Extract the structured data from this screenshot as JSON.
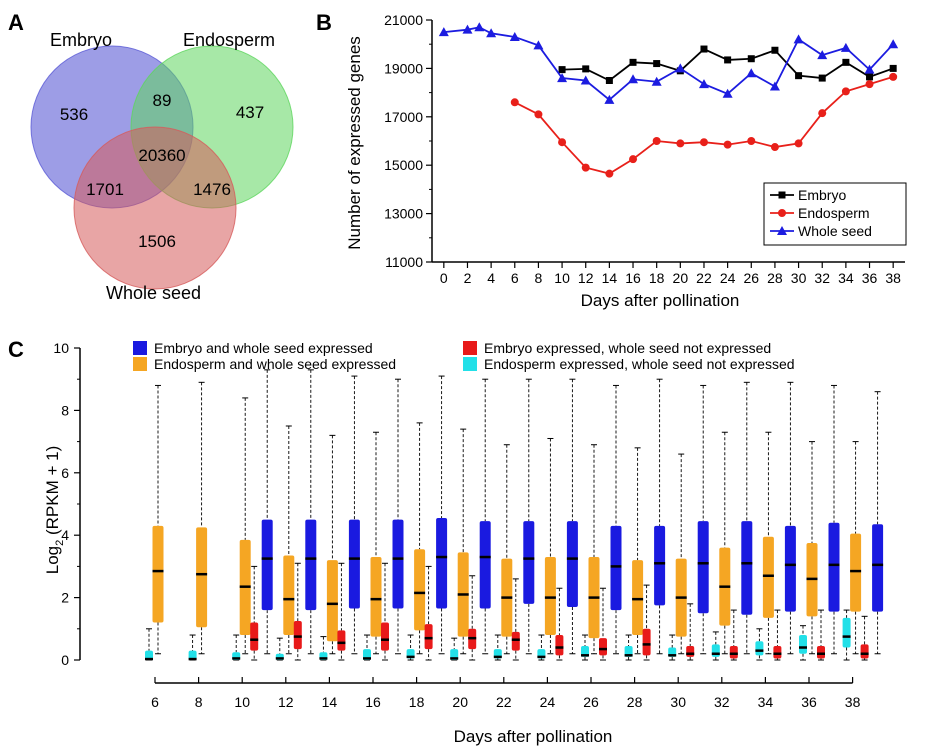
{
  "panel_labels": {
    "a": "A",
    "b": "B",
    "c": "C"
  },
  "chart_data": [
    {
      "type": "venn",
      "panel": "A",
      "sets": [
        {
          "name": "Embryo",
          "label": "Embryo",
          "color": "#5b5bd6"
        },
        {
          "name": "Endosperm",
          "label": "Endosperm",
          "color": "#5ed65e"
        },
        {
          "name": "Whole seed",
          "label": "Whole seed",
          "color": "#d65b5b"
        }
      ],
      "regions": {
        "embryo_only": "536",
        "endosperm_only": "437",
        "whole_seed_only": "1506",
        "embryo_endosperm": "89",
        "embryo_whole_seed": "1701",
        "endosperm_whole_seed": "1476",
        "all_three": "20360"
      }
    },
    {
      "type": "line",
      "panel": "B",
      "xlabel": "Days after pollination",
      "ylabel": "Number of expressed genes",
      "xlim": [
        -1,
        39
      ],
      "ylim": [
        11000,
        21000
      ],
      "xticks": [
        "0",
        "2",
        "4",
        "6",
        "8",
        "10",
        "12",
        "14",
        "16",
        "18",
        "20",
        "22",
        "24",
        "26",
        "28",
        "30",
        "32",
        "34",
        "36",
        "38"
      ],
      "yticks": [
        "11000",
        "13000",
        "15000",
        "17000",
        "19000",
        "21000"
      ],
      "legend_position": "bottom-right",
      "series": [
        {
          "name": "Embryo",
          "color": "#000000",
          "marker": "square",
          "x": [
            10,
            12,
            14,
            16,
            18,
            20,
            22,
            24,
            26,
            28,
            30,
            32,
            34,
            36,
            38
          ],
          "y": [
            18950,
            18980,
            18500,
            19250,
            19200,
            18900,
            19800,
            19350,
            19400,
            19750,
            18700,
            18600,
            19250,
            18650,
            19000
          ]
        },
        {
          "name": "Endosperm",
          "color": "#e8201a",
          "marker": "circle",
          "x": [
            6,
            8,
            10,
            12,
            14,
            16,
            18,
            20,
            22,
            24,
            26,
            28,
            30,
            32,
            34,
            36,
            38
          ],
          "y": [
            17600,
            17100,
            15950,
            14900,
            14650,
            15250,
            16000,
            15900,
            15950,
            15850,
            16000,
            15750,
            15900,
            17150,
            18050,
            18350,
            18650
          ]
        },
        {
          "name": "Whole seed",
          "color": "#1c1ce0",
          "marker": "triangle",
          "x": [
            0,
            2,
            3,
            4,
            6,
            8,
            10,
            12,
            14,
            16,
            18,
            20,
            22,
            24,
            26,
            28,
            30,
            32,
            34,
            36,
            38
          ],
          "y": [
            20500,
            20600,
            20700,
            20450,
            20300,
            19950,
            18600,
            18500,
            17700,
            18550,
            18450,
            19000,
            18350,
            17950,
            18800,
            18250,
            20200,
            19550,
            19850,
            18950,
            20000
          ]
        }
      ]
    },
    {
      "type": "boxplot",
      "panel": "C",
      "xlabel": "Days after pollination",
      "ylabel_main": "Log",
      "ylabel_sub": "2",
      "ylabel_rest": " (RPKM + 1)",
      "ylim": [
        0,
        10
      ],
      "yticks": [
        "0",
        "2",
        "4",
        "6",
        "8",
        "10"
      ],
      "categories": [
        "6",
        "8",
        "10",
        "12",
        "14",
        "16",
        "18",
        "20",
        "22",
        "24",
        "26",
        "28",
        "30",
        "32",
        "34",
        "36",
        "38"
      ],
      "series": [
        {
          "key": "endo_ws_ne",
          "name": "Endosperm expressed, whole seed not expressed",
          "color": "#22e0e8",
          "boxes": [
            [
              0,
              0,
              0.03,
              0.3,
              1.0
            ],
            [
              0,
              0,
              0.03,
              0.3,
              0.8
            ],
            [
              0,
              0,
              0.05,
              0.25,
              0.8
            ],
            [
              0,
              0,
              0.05,
              0.2,
              0.7
            ],
            [
              0,
              0,
              0.05,
              0.25,
              0.75
            ],
            [
              0,
              0,
              0.05,
              0.35,
              0.8
            ],
            [
              0,
              0.05,
              0.1,
              0.35,
              0.8
            ],
            [
              0,
              0,
              0.05,
              0.35,
              0.7
            ],
            [
              0,
              0.05,
              0.1,
              0.35,
              0.8
            ],
            [
              0,
              0.05,
              0.1,
              0.35,
              0.8
            ],
            [
              0,
              0.1,
              0.15,
              0.45,
              0.8
            ],
            [
              0,
              0.1,
              0.15,
              0.45,
              0.8
            ],
            [
              0,
              0.1,
              0.15,
              0.4,
              0.8
            ],
            [
              0,
              0.1,
              0.2,
              0.5,
              0.9
            ],
            [
              0,
              0.15,
              0.3,
              0.6,
              1.0
            ],
            [
              0,
              0.2,
              0.4,
              0.8,
              1.1
            ],
            [
              0,
              0.4,
              0.75,
              1.35,
              1.6
            ]
          ]
        },
        {
          "key": "endo_ws",
          "name": "Endosperm and whole seed expressed",
          "color": "#f5a623",
          "boxes": [
            [
              0.2,
              1.2,
              2.85,
              4.3,
              8.8
            ],
            [
              0.2,
              1.05,
              2.75,
              4.25,
              8.9
            ],
            [
              0.2,
              0.8,
              2.35,
              3.85,
              8.4
            ],
            [
              0.2,
              0.8,
              1.95,
              3.35,
              7.5
            ],
            [
              0.2,
              0.6,
              1.8,
              3.2,
              7.2
            ],
            [
              0.2,
              0.75,
              1.95,
              3.3,
              7.3
            ],
            [
              0.2,
              0.95,
              2.15,
              3.55,
              7.6
            ],
            [
              0.2,
              0.75,
              2.1,
              3.45,
              7.4
            ],
            [
              0.2,
              0.75,
              2.0,
              3.25,
              6.9
            ],
            [
              0.2,
              0.8,
              2.0,
              3.3,
              7.1
            ],
            [
              0.2,
              0.7,
              2.0,
              3.3,
              6.9
            ],
            [
              0.2,
              0.8,
              1.95,
              3.2,
              6.8
            ],
            [
              0.2,
              0.75,
              2.0,
              3.25,
              6.6
            ],
            [
              0.2,
              1.1,
              2.35,
              3.6,
              7.3
            ],
            [
              0.2,
              1.35,
              2.7,
              3.95,
              7.3
            ],
            [
              0.2,
              1.4,
              2.6,
              3.75,
              7.0
            ],
            [
              0.2,
              1.55,
              2.85,
              4.05,
              7.0
            ]
          ]
        },
        {
          "key": "emb_ws_ne",
          "name": "Embryo expressed, whole seed not expressed",
          "color": "#e81a1a",
          "boxes": [
            null,
            null,
            [
              0,
              0.3,
              0.65,
              1.2,
              3.0
            ],
            [
              0,
              0.35,
              0.75,
              1.25,
              3.1
            ],
            [
              0,
              0.3,
              0.55,
              0.95,
              3.1
            ],
            [
              0,
              0.3,
              0.65,
              1.2,
              3.1
            ],
            [
              0,
              0.35,
              0.7,
              1.15,
              3.0
            ],
            [
              0,
              0.35,
              0.7,
              1.0,
              2.7
            ],
            [
              0,
              0.3,
              0.65,
              0.9,
              2.6
            ],
            [
              0,
              0.15,
              0.4,
              0.8,
              2.3
            ],
            [
              0,
              0.15,
              0.35,
              0.7,
              2.3
            ],
            [
              0,
              0.15,
              0.5,
              1.0,
              2.4
            ],
            [
              0,
              0.1,
              0.2,
              0.45,
              1.8
            ],
            [
              0,
              0.05,
              0.2,
              0.45,
              1.6
            ],
            [
              0,
              0.05,
              0.2,
              0.45,
              1.6
            ],
            [
              0,
              0.05,
              0.2,
              0.45,
              1.6
            ],
            [
              0,
              0.05,
              0.2,
              0.5,
              1.4
            ]
          ]
        },
        {
          "key": "emb_ws",
          "name": "Embryo and whole seed expressed",
          "color": "#1a1ae0",
          "boxes": [
            null,
            null,
            [
              0.2,
              1.6,
              3.25,
              4.5,
              9.3
            ],
            [
              0.2,
              1.6,
              3.25,
              4.5,
              9.3
            ],
            [
              0.2,
              1.65,
              3.25,
              4.5,
              9.1
            ],
            [
              0.2,
              1.65,
              3.25,
              4.5,
              9.0
            ],
            [
              0.2,
              1.65,
              3.3,
              4.55,
              9.1
            ],
            [
              0.2,
              1.65,
              3.3,
              4.45,
              9.0
            ],
            [
              0.2,
              1.8,
              3.25,
              4.45,
              9.0
            ],
            [
              0.2,
              1.7,
              3.25,
              4.45,
              9.0
            ],
            [
              0.2,
              1.6,
              3.0,
              4.3,
              8.8
            ],
            [
              0.2,
              1.75,
              3.1,
              4.3,
              9.0
            ],
            [
              0.2,
              1.5,
              3.1,
              4.45,
              8.8
            ],
            [
              0.2,
              1.45,
              3.1,
              4.45,
              8.9
            ],
            [
              0.2,
              1.55,
              3.05,
              4.3,
              8.9
            ],
            [
              0.2,
              1.55,
              3.05,
              4.4,
              8.8
            ],
            [
              0.2,
              1.55,
              3.05,
              4.35,
              8.6
            ]
          ]
        }
      ],
      "legend": [
        {
          "key": "emb_ws",
          "label": "Embryo and whole seed expressed"
        },
        {
          "key": "endo_ws",
          "label": "Endosperm and whole seed expressed"
        },
        {
          "key": "emb_ws_ne",
          "label": "Embryo expressed, whole seed not expressed"
        },
        {
          "key": "endo_ws_ne",
          "label": "Endosperm expressed, whole seed not expressed"
        }
      ]
    }
  ]
}
